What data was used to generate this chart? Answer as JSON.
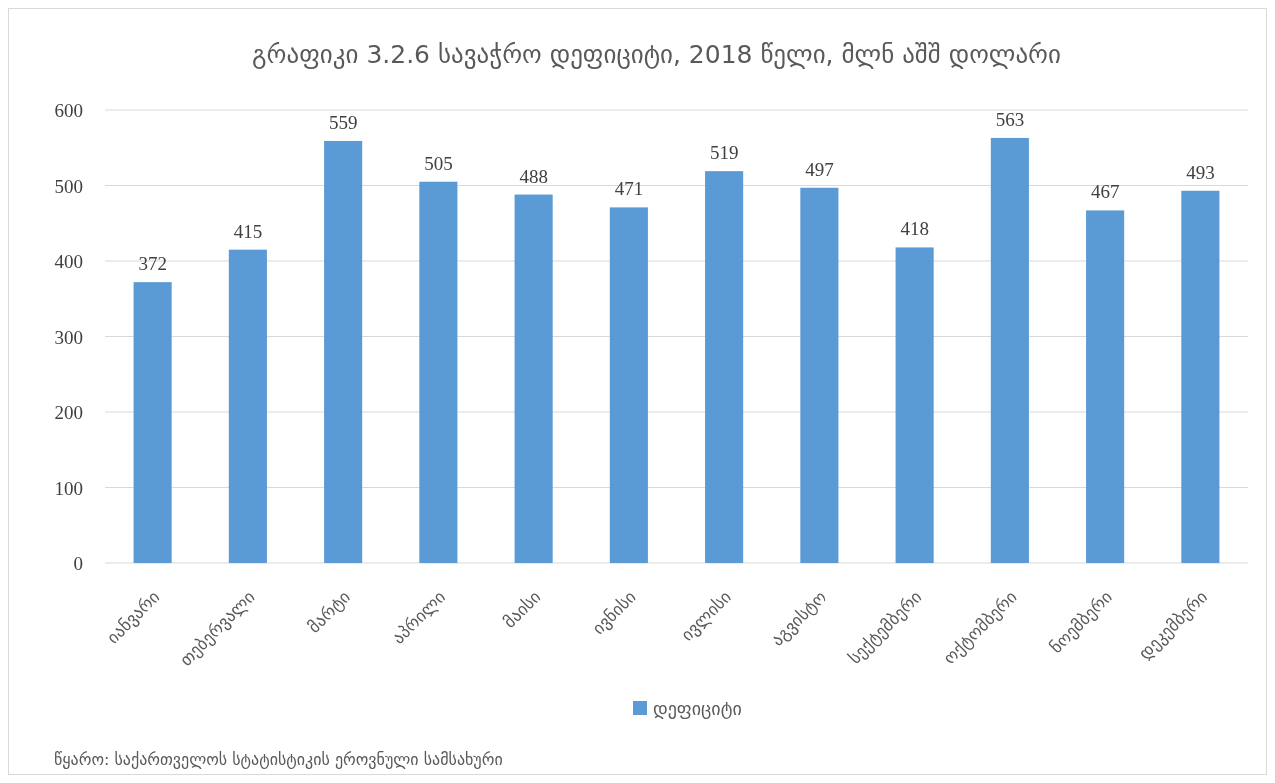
{
  "chart_data": {
    "type": "bar",
    "title": "გრაფიკი 3.2.6 სავაჭრო დეფიციტი, 2018 წელი,  მლნ აშშ დოლარი",
    "categories": [
      "იანვარი",
      "თებერვალი",
      "მარტი",
      "აპრილი",
      "მაისი",
      "ივნისი",
      "ივლისი",
      "აგვისტო",
      "სექტემბერი",
      "ოქტომბერი",
      "ნოემბერი",
      "დეკემბერი"
    ],
    "series": [
      {
        "name": "დეფიციტი",
        "color": "#5b9bd5",
        "values": [
          372,
          415,
          559,
          505,
          488,
          471,
          519,
          497,
          418,
          563,
          467,
          493
        ]
      }
    ],
    "ylim": [
      0,
      600
    ],
    "yticks": [
      0,
      100,
      200,
      300,
      400,
      500,
      600
    ],
    "grid": "y",
    "legend": "bottom",
    "data_labels": true,
    "annotations": [
      "წყარო: საქართველოს სტატისტიკის ეროვნული სამსახური"
    ]
  }
}
